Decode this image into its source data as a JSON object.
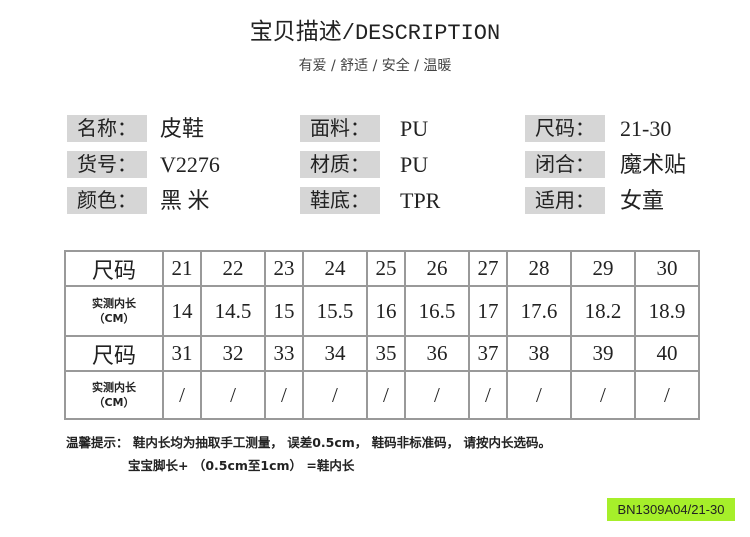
{
  "title": {
    "cn": "宝贝描述",
    "en": "/DESCRIPTION"
  },
  "subtitle": "有爱 / 舒适 / 安全 / 温暖",
  "specs": [
    {
      "label": "名称：",
      "value": "皮鞋"
    },
    {
      "label": "货号：",
      "value": "V2276"
    },
    {
      "label": "颜色：",
      "value": "黑 米"
    },
    {
      "label": "面料：",
      "value": "PU"
    },
    {
      "label": "材质：",
      "value": "PU"
    },
    {
      "label": "鞋底：",
      "value": "TPR"
    },
    {
      "label": "尺码：",
      "value": "21-30"
    },
    {
      "label": "闭合：",
      "value": "魔术贴"
    },
    {
      "label": "适用：",
      "value": "女童"
    }
  ],
  "size_table": {
    "size_header": "尺码",
    "length_header": "实测内长",
    "length_unit": "（CM）",
    "rows": [
      {
        "sizes": [
          "21",
          "22",
          "23",
          "24",
          "25",
          "26",
          "27",
          "28",
          "29",
          "30"
        ],
        "lengths": [
          "14",
          "14.5",
          "15",
          "15.5",
          "16",
          "16.5",
          "17",
          "17.6",
          "18.2",
          "18.9"
        ]
      },
      {
        "sizes": [
          "31",
          "32",
          "33",
          "34",
          "35",
          "36",
          "37",
          "38",
          "39",
          "40"
        ],
        "lengths": [
          "/",
          "/",
          "/",
          "/",
          "/",
          "/",
          "/",
          "/",
          "/",
          "/"
        ]
      }
    ]
  },
  "notes": [
    "温馨提示： 鞋内长均为抽取手工测量， 误差0.5cm， 鞋码非标准码， 请按内长选码。",
    "宝宝脚长+ （0.5cm至1cm） =鞋内长"
  ],
  "sku_badge": "BN1309A04/21-30",
  "colors": {
    "badge": "#a6ef2a",
    "label_bg": "#d6d6d6"
  }
}
